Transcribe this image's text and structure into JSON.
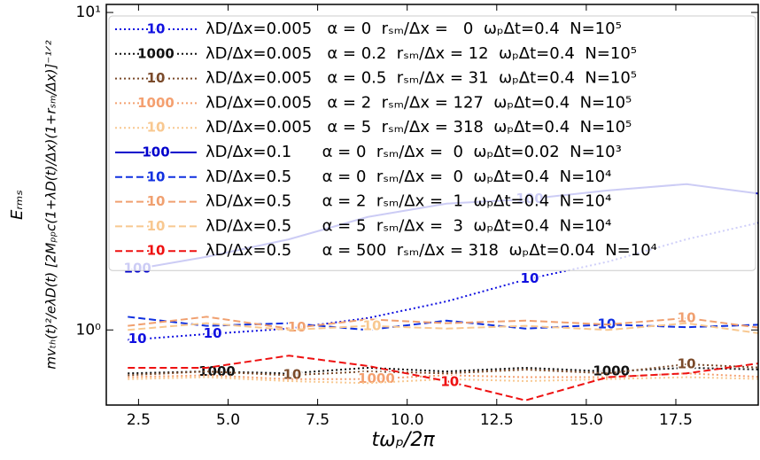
{
  "chart_data": {
    "type": "line",
    "x_label": "tωₚ/2π",
    "y_label": "Eᵣₘₛ",
    "y_label_2": "mvₜₕ(t)²/eλD(t) [2Mₚₚc(1+λD(t)/Δx)(1+rₛₘ/Δx)]⁻¹ᐟ²",
    "x": [
      2.2,
      4.4,
      6.7,
      8.9,
      11.1,
      13.3,
      15.6,
      17.8,
      20.0
    ],
    "xlim": [
      1.6,
      19.8
    ],
    "xticks": [
      2.5,
      5.0,
      7.5,
      10.0,
      12.5,
      15.0,
      17.5
    ],
    "xtick_labels": [
      "2.5",
      "5.0",
      "7.5",
      "10.0",
      "12.5",
      "15.0",
      "17.5"
    ],
    "ylim": [
      0.58,
      10.6
    ],
    "yscale": "log",
    "yticks": [
      {
        "value": 1,
        "label": "10⁰"
      },
      {
        "value": 10,
        "label": "10¹"
      }
    ],
    "legend": "upper left",
    "series": [
      {
        "name": "λD/Δx=0.005   α = 0  rₛₘ/Δx =   0  ωₚΔt=0.4  N=10⁵",
        "tag": "10",
        "color": "#1010e0",
        "style": "dotted",
        "values": [
          0.93,
          0.97,
          1.01,
          1.09,
          1.23,
          1.44,
          1.64,
          1.93,
          2.2
        ],
        "tag_x": [
          2.47,
          4.57,
          13.42
        ]
      },
      {
        "name": "λD/Δx=0.005   α = 0.2  rₛₘ/Δx = 12  ωₚΔt=0.4  N=10⁵",
        "tag": "1000",
        "color": "#111111",
        "style": "dotted",
        "values": [
          0.73,
          0.74,
          0.73,
          0.76,
          0.74,
          0.76,
          0.74,
          0.76,
          0.75
        ],
        "tag_x": [
          4.69,
          15.7
        ]
      },
      {
        "name": "λD/Δx=0.005   α = 0.5  rₛₘ/Δx = 31  ωₚΔt=0.4  N=10⁵",
        "tag": "10",
        "color": "#7a4a2a",
        "style": "dotted",
        "values": [
          0.72,
          0.74,
          0.72,
          0.74,
          0.73,
          0.75,
          0.73,
          0.78,
          0.76
        ],
        "tag_x": [
          6.79,
          17.8
        ]
      },
      {
        "name": "λD/Δx=0.005   α = 2  rₛₘ/Δx = 127  ωₚΔt=0.4  N=10⁵",
        "tag": "1000",
        "color": "#f4a070",
        "style": "dotted",
        "values": [
          0.71,
          0.72,
          0.7,
          0.7,
          0.72,
          0.71,
          0.71,
          0.73,
          0.71
        ],
        "tag_x": [
          9.14
        ]
      },
      {
        "name": "λD/Δx=0.005   α = 5  rₛₘ/Δx = 318  ωₚΔt=0.4  N=10⁵",
        "tag": "10",
        "color": "#f8c890",
        "style": "dotted",
        "values": [
          0.7,
          0.71,
          0.69,
          0.68,
          0.7,
          0.69,
          0.7,
          0.71,
          0.7
        ],
        "tag_x": []
      },
      {
        "name": "λD/Δx=0.1      α = 0  rₛₘ/Δx =  0  ωₚΔt=0.02  N=10³",
        "tag": "100",
        "color": "#0000cc",
        "style": "solid",
        "values": [
          1.54,
          1.7,
          1.93,
          2.27,
          2.5,
          2.58,
          2.75,
          2.88,
          2.67
        ],
        "tag_x": [
          2.47,
          13.42
        ]
      },
      {
        "name": "λD/Δx=0.5      α = 0  rₛₘ/Δx =  0  ωₚΔt=0.4  N=10⁴",
        "tag": "10",
        "color": "#1030e0",
        "style": "dashed",
        "values": [
          1.1,
          1.03,
          1.05,
          1.0,
          1.07,
          1.01,
          1.04,
          1.02,
          1.04
        ],
        "tag_x": [
          15.57
        ]
      },
      {
        "name": "λD/Δx=0.5      α = 2  rₛₘ/Δx =  1  ωₚΔt=0.4  N=10⁴",
        "tag": "10",
        "color": "#f0a070",
        "style": "dashed",
        "values": [
          1.03,
          1.1,
          1.01,
          1.08,
          1.05,
          1.07,
          1.04,
          1.09,
          1.01
        ],
        "tag_x": [
          6.92,
          17.8
        ]
      },
      {
        "name": "λD/Δx=0.5      α = 5  rₛₘ/Δx =  3  ωₚΔt=0.4  N=10⁴",
        "tag": "10",
        "color": "#f8c890",
        "style": "dashed",
        "values": [
          1.0,
          1.05,
          1.0,
          1.03,
          1.01,
          1.03,
          1.0,
          1.05,
          0.97
        ],
        "tag_x": [
          9.02
        ]
      },
      {
        "name": "λD/Δx=0.5      α = 500  rₛₘ/Δx = 318  ωₚΔt=0.04  N=10⁴",
        "tag": "10",
        "color": "#ee1111",
        "style": "dashed",
        "values": [
          0.76,
          0.76,
          0.83,
          0.77,
          0.69,
          0.6,
          0.71,
          0.73,
          0.79
        ],
        "tag_x": [
          11.19
        ]
      }
    ]
  }
}
